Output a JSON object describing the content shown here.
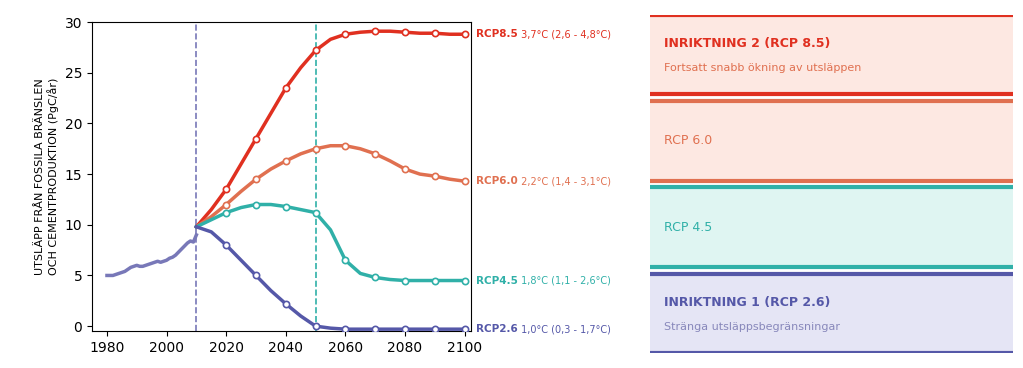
{
  "chart_data": {
    "type": "line",
    "ylabel": "UTSLÄPP FRÅN FOSSILA BRÄNSLEN\nOCH CEMENTPRODUKTION (PgC/år)",
    "xlim": [
      1975,
      2102
    ],
    "ylim": [
      -0.5,
      30
    ],
    "xticks": [
      1980,
      2000,
      2020,
      2040,
      2060,
      2080,
      2100
    ],
    "yticks": [
      0,
      5,
      10,
      15,
      20,
      25,
      30
    ],
    "series": [
      {
        "color": "#7878b8",
        "x": [
          1980,
          1981,
          1982,
          1983,
          1984,
          1985,
          1986,
          1987,
          1988,
          1989,
          1990,
          1991,
          1992,
          1993,
          1994,
          1995,
          1996,
          1997,
          1998,
          1999,
          2000,
          2001,
          2002,
          2003,
          2004,
          2005,
          2006,
          2007,
          2008,
          2009,
          2010
        ],
        "values": [
          5.0,
          5.0,
          5.0,
          5.1,
          5.2,
          5.3,
          5.4,
          5.6,
          5.8,
          5.9,
          6.0,
          5.9,
          5.9,
          6.0,
          6.1,
          6.2,
          6.3,
          6.4,
          6.3,
          6.4,
          6.5,
          6.7,
          6.8,
          7.0,
          7.3,
          7.6,
          7.9,
          8.2,
          8.4,
          8.3,
          9.0
        ]
      },
      {
        "name": "RCP8.5",
        "annotation": " 3,7°C (2,6 - 4,8°C)",
        "color": "#e03020",
        "marker": "o",
        "x": [
          2010,
          2015,
          2020,
          2025,
          2030,
          2035,
          2040,
          2045,
          2050,
          2055,
          2060,
          2065,
          2070,
          2075,
          2080,
          2085,
          2090,
          2095,
          2100
        ],
        "values": [
          9.8,
          11.5,
          13.5,
          16.0,
          18.5,
          21.0,
          23.5,
          25.5,
          27.2,
          28.3,
          28.8,
          29.0,
          29.1,
          29.1,
          29.0,
          28.9,
          28.9,
          28.8,
          28.8
        ]
      },
      {
        "name": "RCP6.0",
        "annotation": " 2,2°C (1,4 - 3,1°C)",
        "color": "#e07050",
        "marker": "o",
        "x": [
          2010,
          2015,
          2020,
          2025,
          2030,
          2035,
          2040,
          2045,
          2050,
          2055,
          2060,
          2065,
          2070,
          2075,
          2080,
          2085,
          2090,
          2095,
          2100
        ],
        "values": [
          9.8,
          10.8,
          12.0,
          13.3,
          14.5,
          15.5,
          16.3,
          17.0,
          17.5,
          17.8,
          17.8,
          17.5,
          17.0,
          16.3,
          15.5,
          15.0,
          14.8,
          14.5,
          14.3
        ]
      },
      {
        "name": "RCP4.5",
        "annotation": " 1,8°C (1,1 - 2,6°C)",
        "color": "#30b0a8",
        "marker": "o",
        "x": [
          2010,
          2015,
          2020,
          2025,
          2030,
          2035,
          2040,
          2045,
          2050,
          2055,
          2060,
          2065,
          2070,
          2075,
          2080,
          2085,
          2090,
          2095,
          2100
        ],
        "values": [
          9.8,
          10.5,
          11.2,
          11.7,
          12.0,
          12.0,
          11.8,
          11.5,
          11.2,
          9.5,
          6.5,
          5.2,
          4.8,
          4.6,
          4.5,
          4.5,
          4.5,
          4.5,
          4.5
        ]
      },
      {
        "name": "RCP2.6",
        "annotation": " 1,0°C (0,3 - 1,7°C)",
        "color": "#5558a8",
        "marker": "o",
        "x": [
          2010,
          2015,
          2020,
          2025,
          2030,
          2035,
          2040,
          2045,
          2050,
          2055,
          2060,
          2065,
          2070,
          2075,
          2080,
          2085,
          2090,
          2095,
          2100
        ],
        "values": [
          9.8,
          9.3,
          8.0,
          6.5,
          5.0,
          3.5,
          2.2,
          1.0,
          0.0,
          -0.2,
          -0.3,
          -0.3,
          -0.3,
          -0.3,
          -0.3,
          -0.3,
          -0.3,
          -0.3,
          -0.3
        ]
      }
    ],
    "vlines": [
      {
        "x": 2010,
        "color": "#7878b8",
        "line_style": "dashed"
      },
      {
        "x": 2050,
        "color": "#30b0a8",
        "line_style": "dashed"
      }
    ],
    "legend_boxes": [
      {
        "title": "INRIKTNING 2 (RCP 8.5)",
        "subtitle": "Fortsatt snabb ökning av utsläppen",
        "color": "#e03020",
        "background": "#fde8e2",
        "subtitle_color": "#e07050",
        "bold": true
      },
      {
        "title": "RCP 6.0",
        "color": "#e07050",
        "background": "#fde8e2",
        "bold": false
      },
      {
        "title": "RCP 4.5",
        "color": "#30b0a8",
        "background": "#dff5f2",
        "bold": false
      },
      {
        "title": "INRIKTNING 1 (RCP 2.6)",
        "subtitle": "Stränga utsläppsbegränsningar",
        "color": "#5558a8",
        "background": "#e5e5f5",
        "subtitle_color": "#8888bb",
        "bold": true
      }
    ]
  }
}
